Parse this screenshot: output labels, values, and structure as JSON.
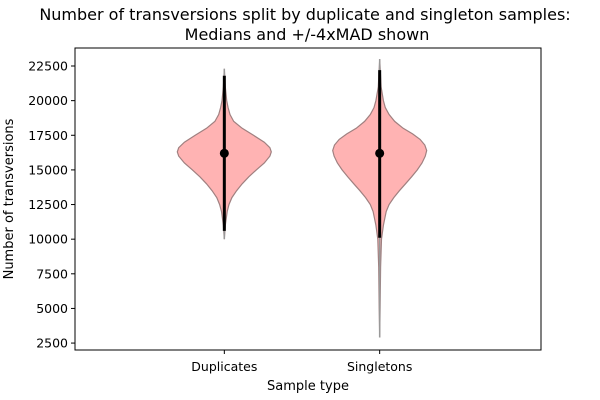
{
  "chart_data": {
    "type": "violin",
    "title": "Number of transversions split by duplicate and singleton samples:",
    "subtitle": "Medians and +/-4xMAD shown",
    "xlabel": "Sample type",
    "ylabel": "Number of transversions",
    "ylim": [
      2000,
      23800
    ],
    "yticks": [
      2500,
      5000,
      7500,
      10000,
      12500,
      15000,
      17500,
      20000,
      22500
    ],
    "ytick_labels": [
      "2500",
      "5000",
      "7500",
      "10000",
      "12500",
      "15000",
      "17500",
      "20000",
      "22500"
    ],
    "categories": [
      "Duplicates",
      "Singletons"
    ],
    "grid": false,
    "colors": {
      "violin_fill": "#ffb3b3",
      "violin_edge": "#a08080",
      "whisker": "#999999",
      "median": "#000000"
    },
    "series": [
      {
        "category": "Duplicates",
        "min": 10000,
        "max": 22300,
        "median": 16200,
        "mad_low": 10600,
        "mad_high": 21800,
        "density": [
          [
            10000,
            0
          ],
          [
            11000,
            0.02
          ],
          [
            12000,
            0.06
          ],
          [
            12500,
            0.1
          ],
          [
            13000,
            0.16
          ],
          [
            13500,
            0.26
          ],
          [
            14000,
            0.38
          ],
          [
            14500,
            0.52
          ],
          [
            15000,
            0.68
          ],
          [
            15500,
            0.85
          ],
          [
            16000,
            0.97
          ],
          [
            16300,
            1.0
          ],
          [
            16600,
            0.97
          ],
          [
            17000,
            0.85
          ],
          [
            17500,
            0.62
          ],
          [
            18000,
            0.38
          ],
          [
            18500,
            0.2
          ],
          [
            19000,
            0.12
          ],
          [
            19500,
            0.08
          ],
          [
            20000,
            0.05
          ],
          [
            21000,
            0.02
          ],
          [
            22300,
            0
          ]
        ]
      },
      {
        "category": "Singletons",
        "min": 2900,
        "max": 23000,
        "median": 16200,
        "mad_low": 10100,
        "mad_high": 22200,
        "density": [
          [
            2900,
            0
          ],
          [
            5000,
            0.01
          ],
          [
            8000,
            0.02
          ],
          [
            10000,
            0.04
          ],
          [
            11000,
            0.08
          ],
          [
            12000,
            0.14
          ],
          [
            12500,
            0.2
          ],
          [
            13000,
            0.3
          ],
          [
            13500,
            0.42
          ],
          [
            14000,
            0.55
          ],
          [
            14500,
            0.68
          ],
          [
            15000,
            0.8
          ],
          [
            15500,
            0.9
          ],
          [
            16000,
            0.97
          ],
          [
            16400,
            1.0
          ],
          [
            16800,
            0.96
          ],
          [
            17200,
            0.86
          ],
          [
            17600,
            0.7
          ],
          [
            18000,
            0.5
          ],
          [
            18500,
            0.32
          ],
          [
            19000,
            0.2
          ],
          [
            19500,
            0.12
          ],
          [
            20000,
            0.08
          ],
          [
            21000,
            0.03
          ],
          [
            23000,
            0
          ]
        ]
      }
    ]
  }
}
